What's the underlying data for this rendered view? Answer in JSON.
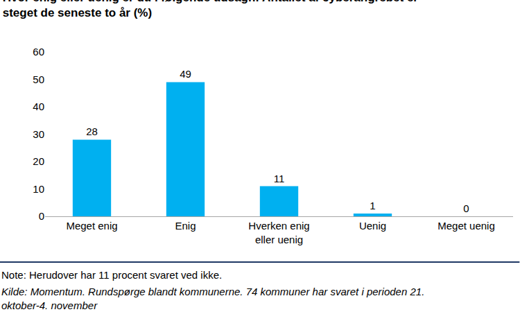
{
  "chart_data": {
    "type": "bar",
    "title": "Hvor enig eller uenig er du i følgende udsagn: Antallet af cyberangrebet er steget de seneste to år (%)",
    "categories": [
      "Meget enig",
      "Enig",
      "Hverken enig eller uenig",
      "Uenig",
      "Meget uenig"
    ],
    "values": [
      28,
      49,
      11,
      1,
      0
    ],
    "color": "#00b0f0",
    "ylim": [
      0,
      60
    ],
    "yticks": [
      0,
      10,
      20,
      30,
      40,
      50,
      60
    ],
    "grid": false,
    "data_labels": true,
    "annotations": [
      "Note: Herudover har 11 procent svaret ved ikke.",
      "Kilde: Momentum. Rundspørge blandt kommunerne. 74 kommuner har svaret i perioden 21. oktober-4. november"
    ]
  }
}
